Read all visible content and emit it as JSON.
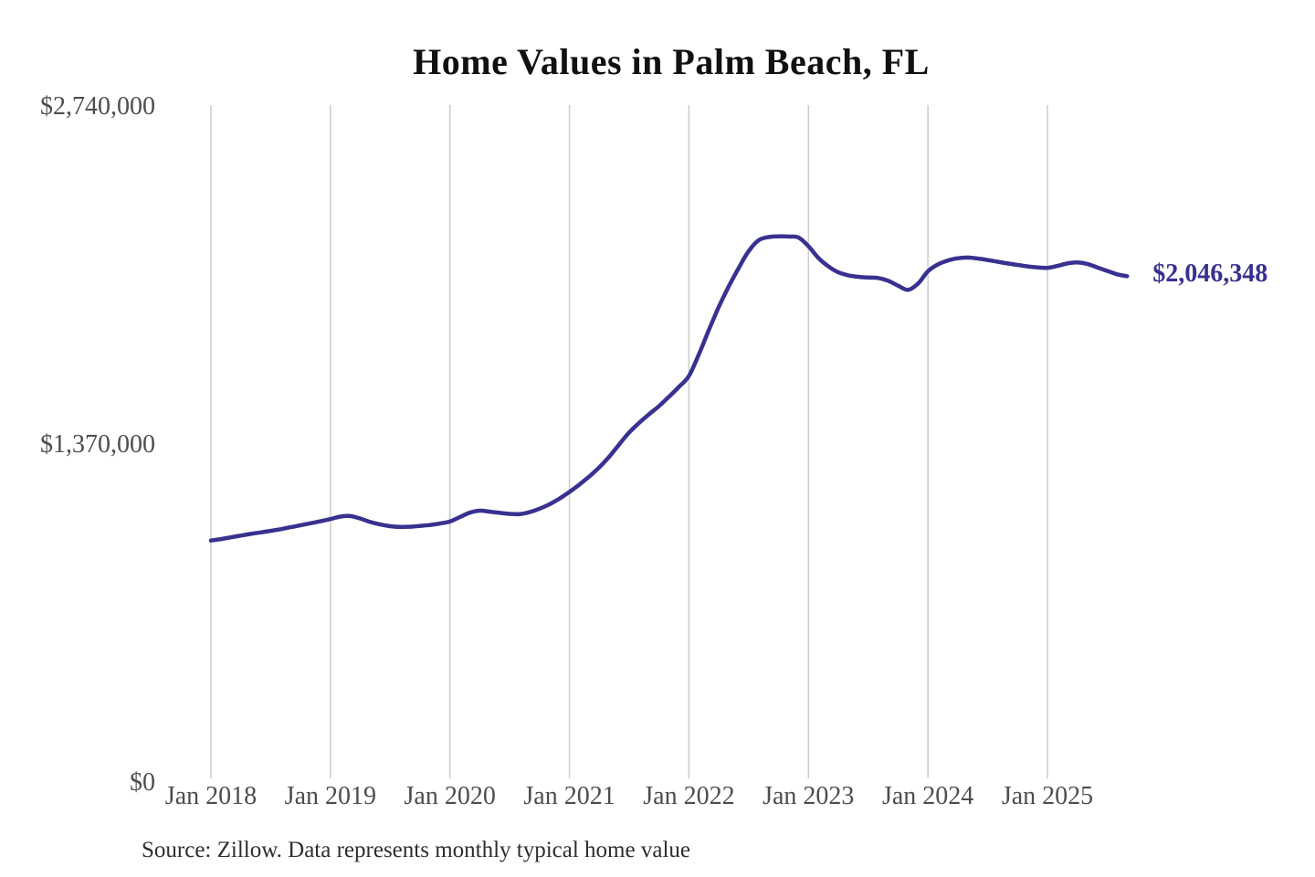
{
  "page": {
    "background": "#ffffff"
  },
  "chart_data": {
    "type": "line",
    "title": "Home Values in Palm Beach, FL",
    "source_note": "Source: Zillow. Data represents monthly typical home value",
    "end_label": "$2,046,348",
    "latest_value": 2046348,
    "line_color": "#39318f",
    "grid_color": "#cccccc",
    "axis_label_color": "#4d4d4d",
    "title_color": "#111111",
    "grid": "vertical-only",
    "legend": "none",
    "ylim": [
      0,
      2740000
    ],
    "y_ticks": [
      {
        "label": "$0",
        "value": 0
      },
      {
        "label": "$1,370,000",
        "value": 1370000
      },
      {
        "label": "$2,740,000",
        "value": 2740000
      }
    ],
    "x_tick_labels": [
      "Jan 2018",
      "Jan 2019",
      "Jan 2020",
      "Jan 2021",
      "Jan 2022",
      "Jan 2023",
      "Jan 2024",
      "Jan 2025"
    ],
    "series": [
      {
        "name": "Monthly typical home value",
        "start_month": "Jan 2018",
        "end_month": "Sep 2025",
        "frequency": "monthly",
        "values": [
          975000,
          981000,
          988000,
          995000,
          1002000,
          1008000,
          1014000,
          1021000,
          1029000,
          1037000,
          1045000,
          1053000,
          1062000,
          1072000,
          1074000,
          1064000,
          1050000,
          1040000,
          1033000,
          1030000,
          1031000,
          1034000,
          1038000,
          1044000,
          1052000,
          1070000,
          1088000,
          1096000,
          1092000,
          1087000,
          1083000,
          1082000,
          1090000,
          1104000,
          1122000,
          1145000,
          1172000,
          1202000,
          1235000,
          1272000,
          1315000,
          1365000,
          1413000,
          1452000,
          1487000,
          1520000,
          1558000,
          1598000,
          1642000,
          1730000,
          1828000,
          1922000,
          2005000,
          2080000,
          2148000,
          2192000,
          2205000,
          2208000,
          2207000,
          2203000,
          2168000,
          2120000,
          2086000,
          2062000,
          2050000,
          2044000,
          2041000,
          2039000,
          2028000,
          2008000,
          1991000,
          2016000,
          2066000,
          2094000,
          2110000,
          2119000,
          2122000,
          2118000,
          2112000,
          2105000,
          2098000,
          2092000,
          2086000,
          2082000,
          2080000,
          2088000,
          2098000,
          2102000,
          2096000,
          2082000,
          2068000,
          2054000,
          2046348
        ]
      }
    ]
  }
}
